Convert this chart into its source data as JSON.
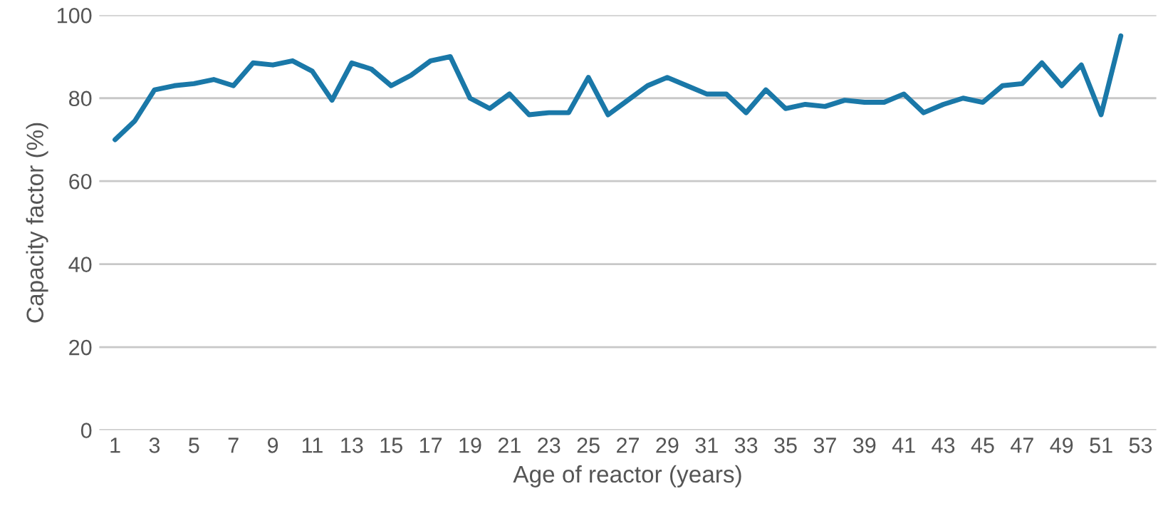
{
  "chart_data": {
    "type": "line",
    "xlabel": "Age of reactor (years)",
    "ylabel": "Capacity factor (%)",
    "categories": [
      "1",
      null,
      "3",
      null,
      "5",
      null,
      "7",
      null,
      "9",
      null,
      "11",
      null,
      "13",
      null,
      "15",
      null,
      "17",
      null,
      "19",
      null,
      "21",
      null,
      "23",
      null,
      "25",
      null,
      "27",
      null,
      "29",
      null,
      "31",
      null,
      "33",
      null,
      "35",
      null,
      "37",
      null,
      "39",
      null,
      "41",
      null,
      "43",
      null,
      "45",
      null,
      "47",
      null,
      "49",
      null,
      "51",
      null,
      "53"
    ],
    "series": [
      {
        "color": "#1a78a8",
        "values": [
          70,
          74.5,
          82,
          83,
          83.5,
          84.5,
          83,
          88.5,
          88,
          89,
          86.5,
          79.5,
          88.5,
          87,
          83,
          85.5,
          89,
          90,
          80,
          77.5,
          81,
          76,
          76.5,
          76.5,
          85,
          76,
          79.5,
          83,
          85,
          83,
          81,
          81,
          76.5,
          82,
          77.5,
          78.5,
          78,
          79.5,
          79,
          79,
          81,
          76.5,
          78.5,
          80,
          79,
          83,
          83.5,
          88.5,
          83,
          88,
          76,
          95,
          null
        ]
      }
    ],
    "ylim": [
      0,
      100
    ],
    "yticks": [
      0,
      20,
      40,
      60,
      80,
      100
    ],
    "grid": "y",
    "marker": "none",
    "line_style": "solid"
  }
}
